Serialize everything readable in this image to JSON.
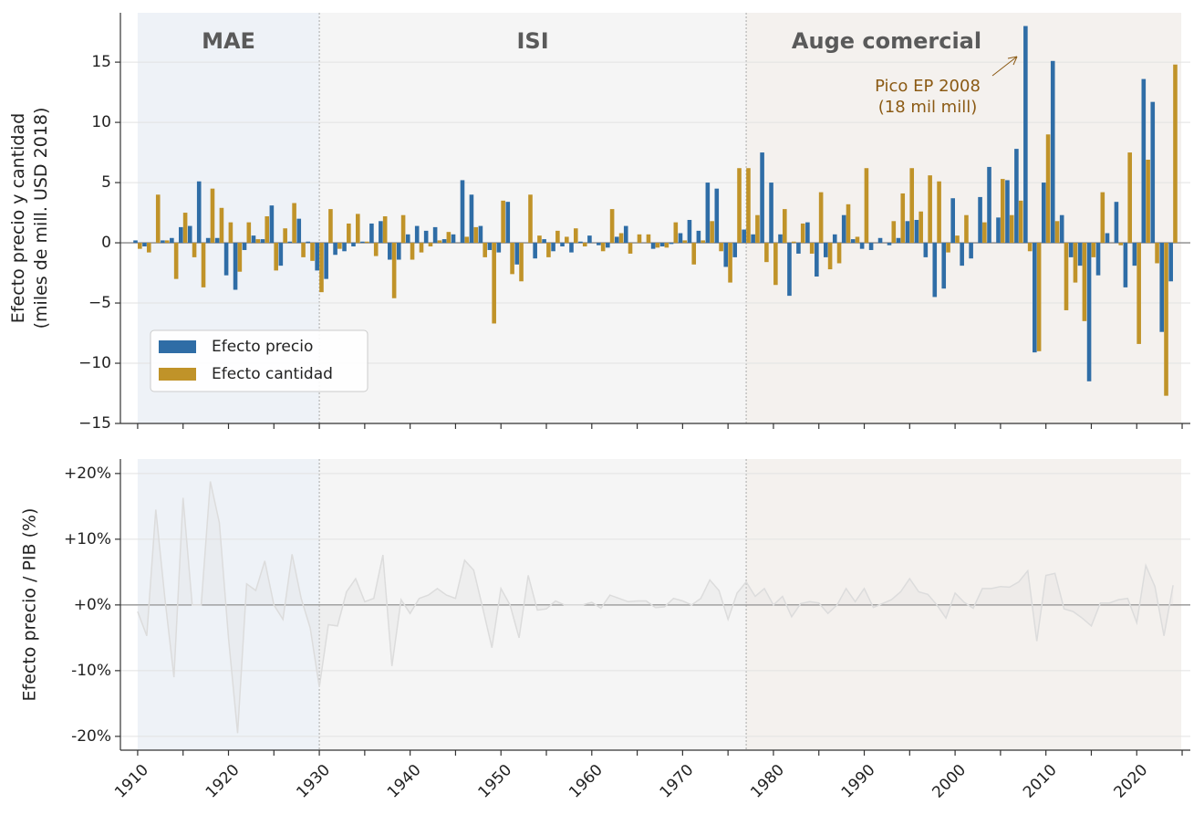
{
  "chart_data": [
    {
      "type": "bar",
      "ylabel": [
        "Efecto precio y cantidad",
        "(miles de mill. USD 2018)"
      ],
      "x": [
        1910,
        1911,
        1912,
        1913,
        1914,
        1915,
        1916,
        1917,
        1918,
        1919,
        1920,
        1921,
        1922,
        1923,
        1924,
        1925,
        1926,
        1927,
        1928,
        1929,
        1930,
        1931,
        1932,
        1933,
        1934,
        1935,
        1936,
        1937,
        1938,
        1939,
        1940,
        1941,
        1942,
        1943,
        1944,
        1945,
        1946,
        1947,
        1948,
        1949,
        1950,
        1951,
        1952,
        1953,
        1954,
        1955,
        1956,
        1957,
        1958,
        1959,
        1960,
        1961,
        1962,
        1963,
        1964,
        1965,
        1966,
        1967,
        1968,
        1969,
        1970,
        1971,
        1972,
        1973,
        1974,
        1975,
        1976,
        1977,
        1978,
        1979,
        1980,
        1981,
        1982,
        1983,
        1984,
        1985,
        1986,
        1987,
        1988,
        1989,
        1990,
        1991,
        1992,
        1993,
        1994,
        1995,
        1996,
        1997,
        1998,
        1999,
        2000,
        2001,
        2002,
        2003,
        2004,
        2005,
        2006,
        2007,
        2008,
        2009,
        2010,
        2011,
        2012,
        2013,
        2014,
        2015,
        2016,
        2017,
        2018,
        2019,
        2020,
        2021,
        2022,
        2023,
        2024
      ],
      "series": [
        {
          "name": "Efecto precio",
          "color": "#2f6da6",
          "values": [
            0.2,
            -0.3,
            0,
            0.2,
            0.4,
            1.3,
            1.4,
            5.1,
            0.4,
            0.4,
            -2.7,
            -3.9,
            -0.6,
            0.6,
            0.3,
            3.1,
            -1.9,
            0.1,
            2.0,
            0.1,
            -2.3,
            -3.0,
            -1.0,
            -0.7,
            -0.3,
            0.1,
            1.6,
            1.8,
            -1.4,
            -1.4,
            0.7,
            1.4,
            1.0,
            1.3,
            0.3,
            0.7,
            5.2,
            4.0,
            1.4,
            -0.6,
            -0.8,
            3.4,
            -1.8,
            0,
            -1.3,
            0.3,
            -0.7,
            -0.3,
            -0.8,
            0.1,
            0.6,
            -0.2,
            -0.4,
            0.5,
            1.4,
            0,
            0,
            -0.5,
            -0.3,
            -0.1,
            0.8,
            1.9,
            1.0,
            5.0,
            4.5,
            -2.0,
            -1.2,
            1.1,
            0.7,
            7.5,
            5.0,
            0.7,
            -4.4,
            -0.9,
            1.7,
            -2.8,
            -1.2,
            0.7,
            2.3,
            0.3,
            -0.5,
            -0.6,
            0.4,
            -0.2,
            0.4,
            1.8,
            1.9,
            -1.2,
            -4.5,
            -3.8,
            3.7,
            -1.9,
            -1.3,
            3.8,
            6.3,
            2.1,
            5.2,
            7.8,
            18.0,
            -9.1,
            5.0,
            15.1,
            2.3,
            -1.2,
            -1.9,
            -11.5,
            -2.7,
            0.8,
            3.4,
            -3.7,
            -1.9,
            13.6,
            11.7,
            -7.4,
            -3.2
          ]
        },
        {
          "name": "Efecto cantidad",
          "color": "#c09329",
          "values": [
            -0.5,
            -0.8,
            4.0,
            0.2,
            -3.0,
            2.5,
            -1.2,
            -3.7,
            4.5,
            2.9,
            1.7,
            -2.4,
            1.7,
            0.3,
            2.2,
            -2.3,
            1.2,
            3.3,
            -1.2,
            -1.5,
            -4.1,
            2.8,
            -0.5,
            1.6,
            2.4,
            0.1,
            -1.1,
            2.2,
            -4.6,
            2.3,
            -1.4,
            -0.8,
            -0.3,
            0.2,
            0.9,
            0,
            0.5,
            1.3,
            -1.2,
            -6.7,
            3.5,
            -2.6,
            -3.2,
            4.0,
            0.6,
            -1.2,
            1.0,
            0.5,
            1.2,
            -0.3,
            0,
            -0.7,
            2.8,
            0.8,
            -0.9,
            0.7,
            0.7,
            -0.4,
            -0.4,
            1.7,
            0.2,
            -1.8,
            0.2,
            1.8,
            -0.7,
            -3.3,
            6.2,
            6.2,
            2.3,
            -1.6,
            -3.5,
            2.8,
            0.1,
            1.6,
            -0.9,
            4.2,
            -2.2,
            -1.7,
            3.2,
            0.5,
            6.2,
            0,
            0,
            1.8,
            4.1,
            6.2,
            2.6,
            5.6,
            5.1,
            -0.8,
            0.6,
            2.3,
            0,
            1.7,
            0,
            5.3,
            2.3,
            3.5,
            -0.7,
            -9.0,
            9.0,
            1.8,
            -5.6,
            -3.3,
            -6.5,
            -1.2,
            4.2,
            0,
            -0.2,
            7.5,
            -8.4,
            6.9,
            -1.7,
            -12.7,
            14.8
          ]
        }
      ],
      "xlim": [
        1908.1,
        2025.9
      ],
      "ylim": [
        -15,
        19.1
      ],
      "yticks": [
        {
          "value": -15,
          "label": "−15"
        },
        {
          "value": -10,
          "label": "−10"
        },
        {
          "value": -5,
          "label": "−5"
        },
        0,
        5,
        10,
        15
      ],
      "xticks": [
        1910,
        1920,
        1930,
        1940,
        1950,
        1960,
        1970,
        1980,
        1990,
        2000,
        2010,
        2020
      ],
      "xticks_minor": [
        1915,
        1925,
        1935,
        1945,
        1955,
        1965,
        1975,
        1985,
        1995,
        2005,
        2015,
        2025
      ],
      "grid": true,
      "legend": "lower left",
      "regions": [
        {
          "label": "MAE",
          "start": 1910,
          "end": 1930,
          "color": "#eef2f7"
        },
        {
          "label": "ISI",
          "start": 1930,
          "end": 1977,
          "color": "#f5f5f5"
        },
        {
          "label": "Auge comercial",
          "start": 1977,
          "end": 2024.9,
          "color": "#f4f1ee"
        }
      ],
      "annotation": [
        "Pico EP 2008",
        "(18 mil mill)"
      ]
    },
    {
      "type": "line",
      "ylabel": "Efecto precio / PIB (%)",
      "x": [
        1910,
        1911,
        1912,
        1913,
        1914,
        1915,
        1916,
        1917,
        1918,
        1919,
        1920,
        1921,
        1922,
        1923,
        1924,
        1925,
        1926,
        1927,
        1928,
        1929,
        1930,
        1931,
        1932,
        1933,
        1934,
        1935,
        1936,
        1937,
        1938,
        1939,
        1940,
        1941,
        1942,
        1943,
        1944,
        1945,
        1946,
        1947,
        1948,
        1949,
        1950,
        1951,
        1952,
        1953,
        1954,
        1955,
        1956,
        1957,
        1958,
        1959,
        1960,
        1961,
        1962,
        1963,
        1964,
        1965,
        1966,
        1967,
        1968,
        1969,
        1970,
        1971,
        1972,
        1973,
        1974,
        1975,
        1976,
        1977,
        1978,
        1979,
        1980,
        1981,
        1982,
        1983,
        1984,
        1985,
        1986,
        1987,
        1988,
        1989,
        1990,
        1991,
        1992,
        1993,
        1994,
        1995,
        1996,
        1997,
        1998,
        1999,
        2000,
        2001,
        2002,
        2003,
        2004,
        2005,
        2006,
        2007,
        2008,
        2009,
        2010,
        2011,
        2012,
        2013,
        2014,
        2015,
        2016,
        2017,
        2018,
        2019,
        2020,
        2021,
        2022,
        2023,
        2024
      ],
      "series": [
        {
          "color": "#dcdcdc",
          "values": [
            -1,
            -4.7,
            14.5,
            1,
            -11,
            16.3,
            0,
            0,
            18.8,
            12.5,
            -5,
            -19.5,
            3.2,
            2.2,
            6.7,
            0,
            -2.2,
            7.7,
            1,
            -3.5,
            -12.5,
            -3,
            -3.2,
            2,
            4,
            0.5,
            1,
            7.6,
            -9.3,
            0.8,
            -1.3,
            1,
            1.5,
            2.5,
            1.5,
            1,
            6.8,
            5.3,
            -0.5,
            -6.5,
            2.5,
            0,
            -5,
            4.5,
            -0.8,
            -0.6,
            0.6,
            0,
            0,
            0,
            0.4,
            -0.5,
            1.5,
            1,
            0.5,
            0.6,
            0.6,
            -0.4,
            -0.3,
            1,
            0.6,
            0,
            1,
            3.8,
            2.2,
            -2.2,
            1.8,
            3.5,
            1.3,
            2.5,
            0,
            1.3,
            -1.8,
            0.2,
            0.5,
            0.3,
            -1.3,
            0,
            2.5,
            0.5,
            2.5,
            -0.4,
            0.2,
            0.8,
            2,
            4,
            2,
            1.6,
            0,
            -2,
            1.8,
            0.4,
            -0.5,
            2.5,
            2.5,
            2.8,
            2.7,
            3.5,
            5.2,
            -5.5,
            4.5,
            4.8,
            -0.6,
            -1,
            -2,
            -3.2,
            0.3,
            0.3,
            0.8,
            1,
            -2.7,
            6,
            2.8,
            -4.7,
            3
          ]
        }
      ],
      "xlim": [
        1908.1,
        2025.9
      ],
      "ylim": [
        -22.1,
        22.2
      ],
      "yticks": [
        {
          "value": -20,
          "label": "-20%"
        },
        {
          "value": -10,
          "label": "-10%"
        },
        {
          "value": 0,
          "label": "+0%"
        },
        {
          "value": 10,
          "label": "+10%"
        },
        {
          "value": 20,
          "label": "+20%"
        }
      ],
      "xticks": [
        1910,
        1920,
        1930,
        1940,
        1950,
        1960,
        1970,
        1980,
        1990,
        2000,
        2010,
        2020
      ],
      "xticks_minor": [
        1915,
        1925,
        1935,
        1945,
        1955,
        1965,
        1975,
        1985,
        1995,
        2005,
        2015,
        2025
      ],
      "grid": true
    }
  ]
}
